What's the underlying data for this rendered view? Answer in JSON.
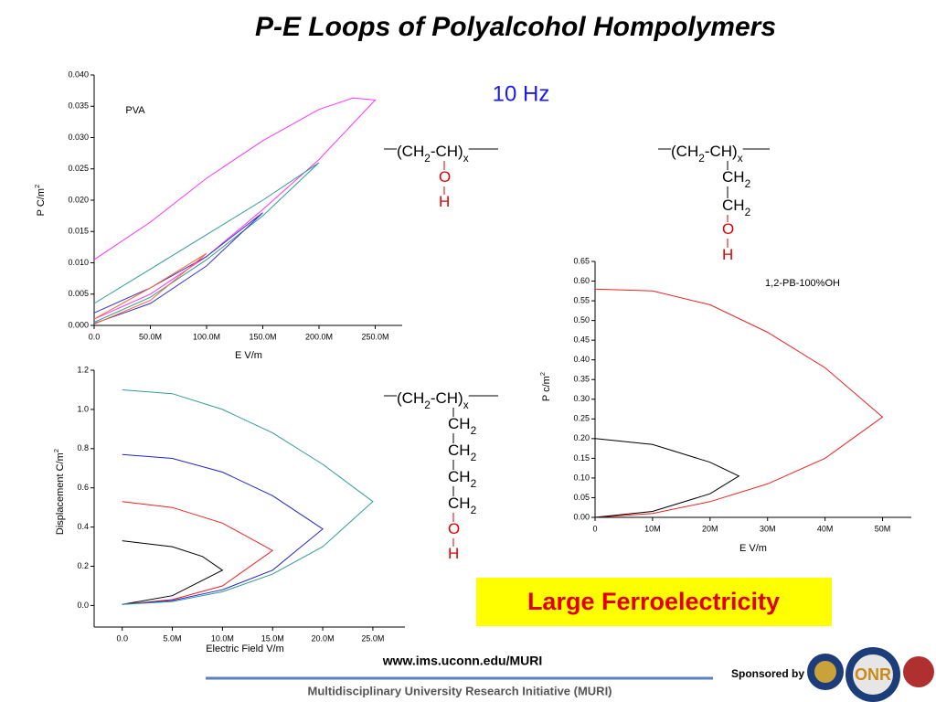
{
  "title": "P-E Loops of Polyalcohol Hompolymers",
  "subtitle": "10 Hz",
  "chart_data": [
    {
      "type": "line",
      "annotation": "PVA",
      "x_label": "E V/m",
      "y_label": [
        "P C/m",
        "2"
      ],
      "xlim": [
        0,
        274000000
      ],
      "ylim": [
        0,
        0.04
      ],
      "xticks": [
        {
          "value": 0,
          "label": "0.0"
        },
        {
          "value": 50000000,
          "label": "50.0M"
        },
        {
          "value": 100000000,
          "label": "100.0M"
        },
        {
          "value": 150000000,
          "label": "150.0M"
        },
        {
          "value": 200000000,
          "label": "200.0M"
        },
        {
          "value": 250000000,
          "label": "250.0M"
        }
      ],
      "yticks": [
        {
          "value": 0,
          "label": "0.000"
        },
        0.005,
        {
          "value": 0.01,
          "label": "0.010"
        },
        0.015,
        {
          "value": 0.02,
          "label": "0.020"
        },
        0.025,
        {
          "value": 0.03,
          "label": "0.030"
        },
        0.035,
        {
          "value": 0.04,
          "label": "0.040"
        }
      ],
      "series": [
        {
          "color": "#ff33ff",
          "x": [
            0,
            50000000,
            100000000,
            150000000,
            200000000,
            230000000,
            250000000,
            200000000,
            150000000,
            100000000,
            50000000,
            0
          ],
          "values": [
            0.0105,
            0.0165,
            0.0235,
            0.0295,
            0.0345,
            0.0363,
            0.036,
            0.0265,
            0.0185,
            0.011,
            0.005,
            0.001
          ]
        },
        {
          "color": "#339999",
          "x": [
            0,
            50000000,
            100000000,
            150000000,
            200000000,
            150000000,
            100000000,
            50000000,
            0
          ],
          "values": [
            0.0035,
            0.009,
            0.0145,
            0.02,
            0.026,
            0.0175,
            0.0105,
            0.0045,
            0.0005
          ]
        },
        {
          "color": "#3333cc",
          "x": [
            0,
            50000000,
            100000000,
            150000000,
            100000000,
            50000000,
            0
          ],
          "values": [
            0.002,
            0.006,
            0.011,
            0.018,
            0.0095,
            0.0035,
            0.0003
          ]
        },
        {
          "color": "#ff6633",
          "x": [
            0,
            50000000,
            100000000,
            50000000,
            0
          ],
          "values": [
            0.001,
            0.006,
            0.0115,
            0.004,
            0.0002
          ]
        }
      ]
    },
    {
      "type": "line",
      "x_label": "Electric Field V/m",
      "y_label": [
        "Displacement C/m",
        "2"
      ],
      "xlim": [
        -2800000,
        28200000
      ],
      "ylim": [
        -0.11,
        1.2
      ],
      "xticks": [
        {
          "value": 0,
          "label": "0.0"
        },
        {
          "value": 5000000,
          "label": "5.0M"
        },
        {
          "value": 10000000,
          "label": "10.0M"
        },
        {
          "value": 15000000,
          "label": "15.0M"
        },
        {
          "value": 20000000,
          "label": "20.0M"
        },
        {
          "value": 25000000,
          "label": "25.0M"
        }
      ],
      "yticks": [
        {
          "value": 0,
          "label": "0.0"
        },
        0.2,
        0.4,
        0.6,
        0.8,
        {
          "value": 1,
          "label": "1.0"
        },
        1.2
      ],
      "series": [
        {
          "color": "#000000",
          "x": [
            0,
            5000000,
            8000000,
            10000000,
            5000000,
            0
          ],
          "values": [
            0.33,
            0.3,
            0.25,
            0.18,
            0.05,
            0.005
          ]
        },
        {
          "color": "#ee2222",
          "x": [
            0,
            5000000,
            10000000,
            15000000,
            10000000,
            5000000,
            0
          ],
          "values": [
            0.53,
            0.5,
            0.42,
            0.28,
            0.1,
            0.03,
            0.005
          ]
        },
        {
          "color": "#2222cc",
          "x": [
            0,
            5000000,
            10000000,
            15000000,
            20000000,
            15000000,
            10000000,
            5000000,
            0
          ],
          "values": [
            0.77,
            0.75,
            0.68,
            0.56,
            0.39,
            0.18,
            0.08,
            0.025,
            0.005
          ]
        },
        {
          "color": "#339999",
          "x": [
            0,
            5000000,
            10000000,
            15000000,
            20000000,
            25000000,
            20000000,
            15000000,
            10000000,
            5000000,
            0
          ],
          "values": [
            1.1,
            1.08,
            1.0,
            0.88,
            0.72,
            0.53,
            0.3,
            0.16,
            0.07,
            0.02,
            0.005
          ]
        }
      ]
    },
    {
      "type": "line",
      "annotation": "1,2-PB-100%OH",
      "x_label": "E V/m",
      "y_label": [
        "P c/m",
        "2"
      ],
      "xlim": [
        0,
        55000000
      ],
      "ylim": [
        0,
        0.65
      ],
      "xticks": [
        0,
        {
          "value": 10000000,
          "label": "10M"
        },
        {
          "value": 20000000,
          "label": "20M"
        },
        {
          "value": 30000000,
          "label": "30M"
        },
        {
          "value": 40000000,
          "label": "40M"
        },
        {
          "value": 50000000,
          "label": "50M"
        }
      ],
      "yticks": [
        {
          "value": 0,
          "label": "0.00"
        },
        0.05,
        {
          "value": 0.1,
          "label": "0.10"
        },
        0.15,
        {
          "value": 0.2,
          "label": "0.20"
        },
        0.25,
        {
          "value": 0.3,
          "label": "0.30"
        },
        0.35,
        {
          "value": 0.4,
          "label": "0.40"
        },
        0.45,
        {
          "value": 0.5,
          "label": "0.50"
        },
        0.55,
        {
          "value": 0.6,
          "label": "0.60"
        },
        0.65
      ],
      "series": [
        {
          "color": "#ee2222",
          "x": [
            0,
            10000000,
            20000000,
            30000000,
            40000000,
            50000000,
            40000000,
            30000000,
            20000000,
            10000000,
            0
          ],
          "values": [
            0.58,
            0.575,
            0.54,
            0.47,
            0.38,
            0.255,
            0.15,
            0.085,
            0.04,
            0.01,
            0
          ]
        },
        {
          "color": "#000000",
          "x": [
            0,
            10000000,
            20000000,
            25000000,
            20000000,
            10000000,
            0
          ],
          "values": [
            0.2,
            0.185,
            0.14,
            0.105,
            0.06,
            0.015,
            0
          ]
        }
      ]
    }
  ],
  "structures": [
    {
      "backbone": [
        "(CH",
        "2",
        "-CH)",
        "x"
      ],
      "side": [
        {
          "parts": [
            "O"
          ],
          "color": "#e00000"
        },
        {
          "parts": [
            "H"
          ],
          "color": "#e00000"
        }
      ]
    },
    {
      "backbone": [
        "(CH",
        "2",
        "-CH)",
        "x"
      ],
      "side": [
        {
          "parts": [
            "CH",
            "2"
          ],
          "color": "#000000"
        },
        {
          "parts": [
            "CH",
            "2"
          ],
          "color": "#000000"
        },
        {
          "parts": [
            "O"
          ],
          "color": "#e00000"
        },
        {
          "parts": [
            "H"
          ],
          "color": "#e00000"
        }
      ]
    },
    {
      "backbone": [
        "(CH",
        "2",
        "-CH)",
        "x"
      ],
      "side": [
        {
          "parts": [
            "CH",
            "2"
          ],
          "color": "#000000"
        },
        {
          "parts": [
            "CH",
            "2"
          ],
          "color": "#000000"
        },
        {
          "parts": [
            "CH",
            "2"
          ],
          "color": "#000000"
        },
        {
          "parts": [
            "CH",
            "2"
          ],
          "color": "#000000"
        },
        {
          "parts": [
            "O"
          ],
          "color": "#e00000"
        },
        {
          "parts": [
            "H"
          ],
          "color": "#e00000"
        }
      ]
    }
  ],
  "highlight": "Large Ferroelectricity",
  "url": "www.ims.uconn.edu/MURI",
  "footer": "Multidisciplinary University Research Initiative (MURI)",
  "sponsor": {
    "label": "Sponsored by",
    "logo": "ONR"
  }
}
